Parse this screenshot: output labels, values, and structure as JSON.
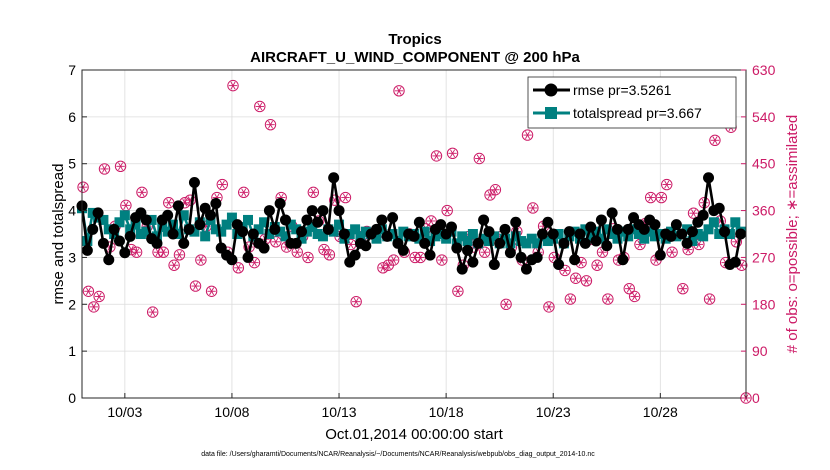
{
  "chart_data": {
    "type": "line",
    "title": "Tropics",
    "subtitle": "AIRCRAFT_U_WIND_COMPONENT @ 200 hPa",
    "xlabel": "Oct.01,2014 00:00:00 start",
    "ylabel": "rmse and totalspread",
    "y2label": "# of obs: o=possible; ∗=assimilated",
    "footnote": "data file: /Users/gharamti/Documents/NCAR/Reanalysis/~/Documents/NCAR/Reanalysis/webpub/obs_diag_output_2014-10.nc",
    "x_range": [
      1.0,
      32.0
    ],
    "ylim": [
      0,
      7
    ],
    "y2lim": [
      0,
      630
    ],
    "x_ticks": [
      {
        "value": 3,
        "label": "10/03"
      },
      {
        "value": 8,
        "label": "10/08"
      },
      {
        "value": 13,
        "label": "10/13"
      },
      {
        "value": 18,
        "label": "10/18"
      },
      {
        "value": 23,
        "label": "10/23"
      },
      {
        "value": 28,
        "label": "10/28"
      }
    ],
    "y_ticks": [
      "0",
      "1",
      "2",
      "3",
      "4",
      "5",
      "6",
      "7"
    ],
    "y2_ticks": [
      "0",
      "90",
      "180",
      "270",
      "360",
      "450",
      "540",
      "630"
    ],
    "legend_position": "top-right",
    "series": [
      {
        "name": "rmse pr=3.5261",
        "color": "#000000",
        "marker": "circle",
        "x": [
          1.0,
          1.25,
          1.5,
          1.75,
          2.0,
          2.25,
          2.5,
          2.75,
          3.0,
          3.25,
          3.5,
          3.75,
          4.0,
          4.25,
          4.5,
          4.75,
          5.0,
          5.25,
          5.5,
          5.75,
          6.0,
          6.25,
          6.5,
          6.75,
          7.0,
          7.25,
          7.5,
          7.75,
          8.0,
          8.25,
          8.5,
          8.75,
          9.0,
          9.25,
          9.5,
          9.75,
          10.0,
          10.25,
          10.5,
          10.75,
          11.0,
          11.25,
          11.5,
          11.75,
          12.0,
          12.25,
          12.5,
          12.75,
          13.0,
          13.25,
          13.5,
          13.75,
          14.0,
          14.25,
          14.5,
          14.75,
          15.0,
          15.25,
          15.5,
          15.75,
          16.0,
          16.25,
          16.5,
          16.75,
          17.0,
          17.25,
          17.5,
          17.75,
          18.0,
          18.25,
          18.5,
          18.75,
          19.0,
          19.25,
          19.5,
          19.75,
          20.0,
          20.25,
          20.5,
          20.75,
          21.0,
          21.25,
          21.5,
          21.75,
          22.0,
          22.25,
          22.5,
          22.75,
          23.0,
          23.25,
          23.5,
          23.75,
          24.0,
          24.25,
          24.5,
          24.75,
          25.0,
          25.25,
          25.5,
          25.75,
          26.0,
          26.25,
          26.5,
          26.75,
          27.0,
          27.25,
          27.5,
          27.75,
          28.0,
          28.25,
          28.5,
          28.75,
          29.0,
          29.25,
          29.5,
          29.75,
          30.0,
          30.25,
          30.5,
          30.75,
          31.0,
          31.25,
          31.5,
          31.75
        ],
        "values": [
          4.1,
          3.15,
          3.6,
          3.95,
          3.3,
          2.95,
          3.6,
          3.35,
          3.1,
          3.45,
          3.85,
          3.95,
          3.8,
          3.4,
          3.3,
          3.8,
          3.9,
          3.5,
          4.1,
          3.3,
          3.6,
          4.6,
          3.7,
          4.05,
          3.9,
          4.15,
          3.2,
          3.05,
          2.95,
          3.7,
          3.55,
          3.0,
          3.5,
          3.3,
          3.2,
          4.0,
          3.6,
          4.15,
          3.8,
          3.3,
          3.3,
          3.55,
          3.8,
          4.0,
          3.75,
          4.0,
          3.6,
          4.7,
          4.0,
          3.5,
          2.9,
          3.05,
          3.3,
          3.25,
          3.5,
          3.6,
          3.8,
          3.45,
          3.85,
          3.3,
          3.15,
          3.5,
          3.45,
          3.75,
          3.3,
          3.05,
          3.6,
          3.7,
          3.5,
          3.65,
          3.2,
          2.75,
          3.15,
          2.9,
          3.3,
          3.8,
          3.55,
          2.85,
          3.3,
          3.6,
          3.1,
          3.75,
          3.0,
          2.75,
          2.95,
          3.0,
          3.5,
          3.75,
          3.5,
          2.85,
          3.3,
          3.55,
          2.95,
          3.5,
          3.3,
          3.65,
          3.35,
          3.8,
          3.25,
          3.95,
          3.6,
          2.95,
          3.6,
          3.85,
          3.7,
          3.6,
          3.8,
          3.7,
          3.05,
          3.5,
          3.45,
          3.7,
          3.5,
          3.3,
          3.55,
          3.75,
          3.9,
          4.7,
          4.0,
          4.05,
          3.55,
          2.85,
          2.9,
          3.5
        ]
      },
      {
        "name": "totalspread pr=3.667",
        "color": "#008080",
        "marker": "square",
        "x": [
          1.0,
          1.25,
          1.5,
          1.75,
          2.0,
          2.25,
          2.5,
          2.75,
          3.0,
          3.25,
          3.5,
          3.75,
          4.0,
          4.25,
          4.5,
          4.75,
          5.0,
          5.25,
          5.5,
          5.75,
          6.0,
          6.25,
          6.5,
          6.75,
          7.0,
          7.25,
          7.5,
          7.75,
          8.0,
          8.25,
          8.5,
          8.75,
          9.0,
          9.25,
          9.5,
          9.75,
          10.0,
          10.25,
          10.5,
          10.75,
          11.0,
          11.25,
          11.5,
          11.75,
          12.0,
          12.25,
          12.5,
          12.75,
          13.0,
          13.25,
          13.5,
          13.75,
          14.0,
          14.25,
          14.5,
          14.75,
          15.0,
          15.25,
          15.5,
          15.75,
          16.0,
          16.25,
          16.5,
          16.75,
          17.0,
          17.25,
          17.5,
          17.75,
          18.0,
          18.25,
          18.5,
          18.75,
          19.0,
          19.25,
          19.5,
          19.75,
          20.0,
          20.25,
          20.5,
          20.75,
          21.0,
          21.25,
          21.5,
          21.75,
          22.0,
          22.25,
          22.5,
          22.75,
          23.0,
          23.25,
          23.5,
          23.75,
          24.0,
          24.25,
          24.5,
          24.75,
          25.0,
          25.25,
          25.5,
          25.75,
          26.0,
          26.25,
          26.5,
          26.75,
          27.0,
          27.25,
          27.5,
          27.75,
          28.0,
          28.25,
          28.5,
          28.75,
          29.0,
          29.25,
          29.5,
          29.75,
          30.0,
          30.25,
          30.5,
          30.75,
          31.0,
          31.25,
          31.5,
          31.75
        ],
        "values": [
          4.05,
          3.35,
          3.95,
          3.85,
          3.8,
          3.6,
          3.5,
          3.75,
          3.9,
          3.6,
          3.7,
          3.5,
          3.55,
          3.8,
          3.45,
          3.65,
          3.55,
          3.7,
          3.5,
          3.9,
          3.6,
          3.55,
          3.75,
          3.45,
          3.8,
          3.6,
          3.55,
          3.7,
          3.85,
          3.5,
          3.65,
          3.8,
          3.45,
          3.6,
          3.75,
          3.5,
          3.65,
          3.55,
          3.45,
          3.7,
          3.6,
          3.4,
          3.55,
          3.65,
          3.5,
          3.45,
          3.6,
          3.55,
          3.7,
          3.4,
          3.5,
          3.6,
          3.45,
          3.55,
          3.5,
          3.4,
          3.6,
          3.45,
          3.5,
          3.35,
          3.55,
          3.45,
          3.5,
          3.4,
          3.55,
          3.35,
          3.45,
          3.5,
          3.4,
          3.55,
          3.3,
          3.45,
          3.35,
          3.5,
          3.3,
          3.4,
          3.35,
          3.45,
          3.3,
          3.4,
          3.3,
          3.45,
          3.35,
          3.3,
          3.4,
          3.3,
          3.45,
          3.35,
          3.4,
          3.5,
          3.3,
          3.45,
          3.55,
          3.4,
          3.6,
          3.45,
          3.55,
          3.4,
          3.6,
          3.5,
          3.4,
          3.55,
          3.45,
          3.6,
          3.5,
          3.4,
          3.55,
          3.45,
          3.5,
          3.4,
          3.55,
          3.45,
          3.5,
          3.6,
          3.35,
          3.5,
          3.45,
          3.6,
          3.75,
          3.5,
          3.6,
          3.5,
          3.75,
          3.55
        ]
      },
      {
        "name": "# of obs possible",
        "color": "#cc1a66",
        "marker": "open-circle",
        "axis": "right",
        "x": [
          1.05,
          1.3,
          1.55,
          1.8,
          2.05,
          2.3,
          2.55,
          2.8,
          3.05,
          3.3,
          3.55,
          3.8,
          4.05,
          4.3,
          4.55,
          4.8,
          5.05,
          5.3,
          5.55,
          5.8,
          6.05,
          6.3,
          6.55,
          6.8,
          7.05,
          7.3,
          7.55,
          7.8,
          8.05,
          8.3,
          8.55,
          8.8,
          9.05,
          9.3,
          9.55,
          9.8,
          10.05,
          10.3,
          10.55,
          10.8,
          11.05,
          11.3,
          11.55,
          11.8,
          12.05,
          12.3,
          12.55,
          12.8,
          13.05,
          13.3,
          13.55,
          13.8,
          14.05,
          14.3,
          14.55,
          14.8,
          15.05,
          15.3,
          15.55,
          15.8,
          16.05,
          16.3,
          16.55,
          16.8,
          17.05,
          17.3,
          17.55,
          17.8,
          18.05,
          18.3,
          18.55,
          18.8,
          19.05,
          19.3,
          19.55,
          19.8,
          20.05,
          20.3,
          20.55,
          20.8,
          21.05,
          21.3,
          21.55,
          21.8,
          22.05,
          22.3,
          22.55,
          22.8,
          23.05,
          23.3,
          23.55,
          23.8,
          24.05,
          24.3,
          24.55,
          24.8,
          25.05,
          25.3,
          25.55,
          25.8,
          26.05,
          26.3,
          26.55,
          26.8,
          27.05,
          27.3,
          27.55,
          27.8,
          28.05,
          28.3,
          28.55,
          28.8,
          29.05,
          29.3,
          29.55,
          29.8,
          30.05,
          30.3,
          30.55,
          30.8,
          31.05,
          31.3,
          31.55,
          31.8,
          32.0
        ],
        "values": [
          405,
          205,
          175,
          195,
          440,
          290,
          330,
          445,
          370,
          285,
          280,
          395,
          330,
          165,
          280,
          280,
          375,
          255,
          275,
          375,
          380,
          215,
          265,
          330,
          205,
          385,
          410,
          280,
          600,
          250,
          395,
          290,
          260,
          560,
          305,
          525,
          300,
          385,
          290,
          330,
          280,
          310,
          270,
          395,
          340,
          285,
          275,
          380,
          310,
          385,
          295,
          185,
          310,
          320,
          315,
          315,
          250,
          255,
          265,
          590,
          280,
          315,
          270,
          270,
          325,
          340,
          465,
          265,
          360,
          470,
          205,
          255,
          310,
          290,
          460,
          280,
          390,
          400,
          310,
          180,
          290,
          320,
          265,
          505,
          365,
          280,
          330,
          175,
          270,
          560,
          245,
          190,
          230,
          260,
          225,
          305,
          255,
          280,
          190,
          325,
          265,
          270,
          210,
          195,
          295,
          335,
          385,
          265,
          385,
          410,
          280,
          315,
          210,
          285,
          355,
          295,
          375,
          190,
          495,
          340,
          260,
          520,
          300,
          255,
          0
        ]
      }
    ]
  }
}
